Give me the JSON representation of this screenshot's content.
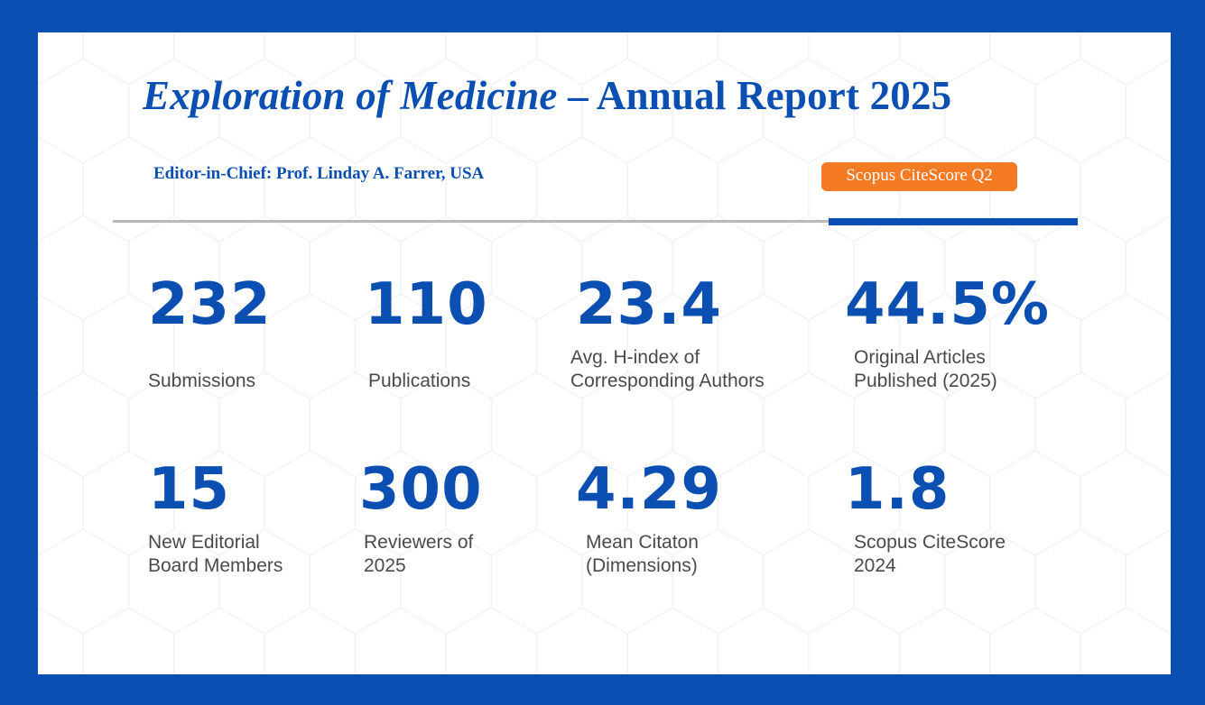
{
  "report": {
    "title_journal": "Exploration of Medicine",
    "title_rest": " – Annual Report 2025",
    "editor_line": "Editor-in-Chief: Prof. Linday A. Farrer, USA",
    "badge": "Scopus CiteScore Q2"
  },
  "colors": {
    "brand_blue": "#0a4fb1",
    "badge_orange": "#f47a24",
    "label_gray": "#4a4a4a",
    "rule_gray": "#b9b9b9"
  },
  "stats": [
    {
      "value": "232",
      "label_line1": "Submissions",
      "label_line2": ""
    },
    {
      "value": "110",
      "label_line1": "Publications",
      "label_line2": ""
    },
    {
      "value": "23.4",
      "label_line1": "Avg. H-index of",
      "label_line2": "Corresponding Authors"
    },
    {
      "value": "44.5%",
      "label_line1": "Original Articles",
      "label_line2": "Published (2025)"
    },
    {
      "value": "15",
      "label_line1": "New Editorial",
      "label_line2": "Board Members"
    },
    {
      "value": "300",
      "label_line1": "Reviewers of",
      "label_line2": "2025"
    },
    {
      "value": "4.29",
      "label_line1": "Mean Citaton",
      "label_line2": "(Dimensions)"
    },
    {
      "value": "1.8",
      "label_line1": "Scopus CiteScore",
      "label_line2": "2024"
    }
  ]
}
